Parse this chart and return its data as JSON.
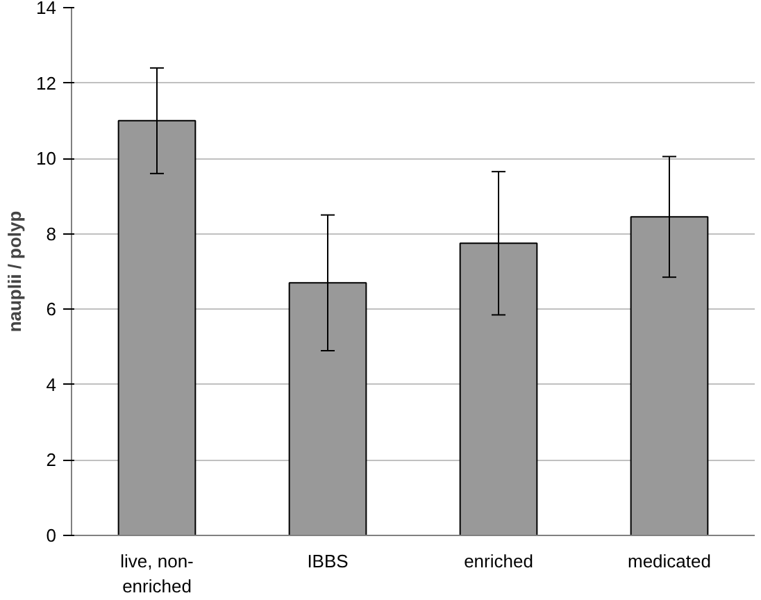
{
  "chart_data": {
    "type": "bar",
    "ylabel": "nauplii / polyp",
    "categories": [
      "live, non-\nenriched",
      "IBBS",
      "enriched",
      "medicated"
    ],
    "values": [
      11.0,
      6.7,
      7.75,
      8.45
    ],
    "errors": [
      1.4,
      1.8,
      1.9,
      1.6
    ],
    "color": "#999999",
    "ylim": [
      0,
      14
    ],
    "yticks": [
      0,
      2,
      4,
      6,
      8,
      10,
      12,
      14
    ],
    "grid": "y"
  }
}
